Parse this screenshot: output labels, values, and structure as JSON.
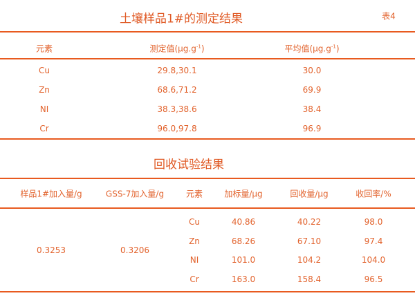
{
  "table1": {
    "title": "土壤样品1#的测定结果",
    "label": "表4",
    "headers": [
      "元素",
      "测定值(μg.g",
      "平均值(μg.g"
    ],
    "header_sup": "-1",
    "header_close": ")",
    "rows": [
      [
        "Cu",
        "29.8,30.1",
        "30.0"
      ],
      [
        "Zn",
        "68.6,71.2",
        "69.9"
      ],
      [
        "NI",
        "38.3,38.6",
        "38.4"
      ],
      [
        "Cr",
        "96.0,97.8",
        "96.9"
      ]
    ]
  },
  "table2": {
    "title": "回收试验结果",
    "headers": [
      "样品1#加入量/g",
      "GSS-7加入量/g",
      "元素",
      "加标量/μg",
      "回收量/μg",
      "收回率/%"
    ],
    "sample_amount": "0.3253",
    "gss_amount": "0.3206",
    "rows": [
      [
        "Cu",
        "40.86",
        "40.22",
        "98.0"
      ],
      [
        "Zn",
        "68.26",
        "67.10",
        "97.4"
      ],
      [
        "NI",
        "101.0",
        "104.2",
        "104.0"
      ],
      [
        "Cr",
        "163.0",
        "158.4",
        "96.5"
      ]
    ]
  },
  "colors": {
    "accent": "#e85a1f",
    "text": "#e2622c"
  }
}
